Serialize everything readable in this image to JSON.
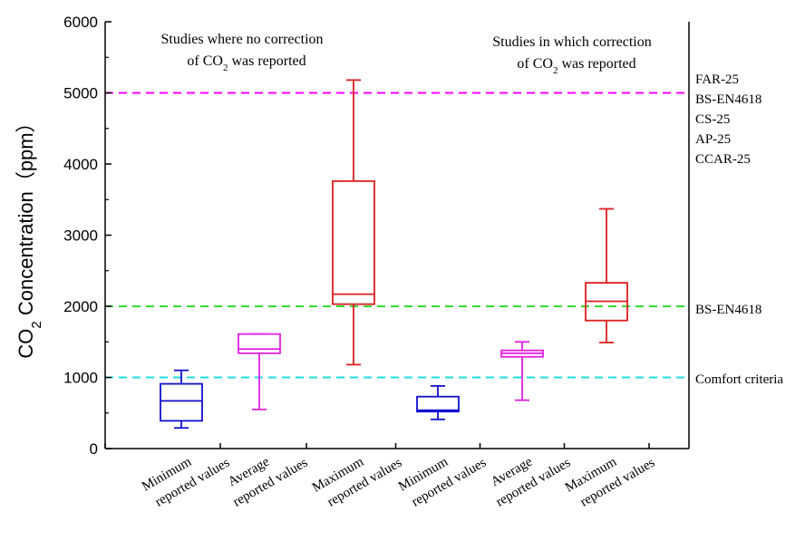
{
  "chart_data": {
    "type": "box",
    "ylabel": "CO₂ Concentration（ppm）",
    "ylim": [
      0,
      6000
    ],
    "yticks": [
      0,
      1000,
      2000,
      3000,
      4000,
      5000,
      6000
    ],
    "categories": [
      [
        "Minimum",
        "reported values"
      ],
      [
        "Average",
        "reported values"
      ],
      [
        "Maximum",
        "reported values"
      ],
      [
        "Minimum",
        "reported values"
      ],
      [
        "Average",
        "reported values"
      ],
      [
        "Maximum",
        "reported values"
      ]
    ],
    "group_labels": [
      [
        "Studies where no correction",
        "of CO₂ was reported"
      ],
      [
        "Studies in which correction",
        "of CO₂ was reported"
      ]
    ],
    "boxes": [
      {
        "min": 290,
        "q1": 390,
        "median": 670,
        "q3": 910,
        "max": 1100,
        "color": "#1010cc"
      },
      {
        "min": 550,
        "q1": 1340,
        "median": 1400,
        "q3": 1610,
        "max": 1610,
        "color": "#e020e0"
      },
      {
        "min": 1180,
        "q1": 2030,
        "median": 2170,
        "q3": 3760,
        "max": 5180,
        "color": "#dd1e1e"
      },
      {
        "min": 410,
        "q1": 520,
        "median": 540,
        "q3": 730,
        "max": 880,
        "color": "#1010cc"
      },
      {
        "min": 680,
        "q1": 1290,
        "median": 1340,
        "q3": 1380,
        "max": 1500,
        "color": "#e020e0"
      },
      {
        "min": 1490,
        "q1": 1800,
        "median": 2070,
        "q3": 2330,
        "max": 3370,
        "color": "#dd1e1e"
      }
    ],
    "reference_lines": [
      {
        "value": 5000,
        "color": "#ff00ff",
        "labels": [
          "FAR-25",
          "BS-EN4618",
          "CS-25",
          "AP-25",
          "CCAR-25"
        ]
      },
      {
        "value": 2000,
        "color": "#33dd33",
        "labels": [
          "BS-EN4618"
        ]
      },
      {
        "value": 1000,
        "color": "#22dddd",
        "labels": [
          "Comfort criteria"
        ]
      }
    ]
  }
}
